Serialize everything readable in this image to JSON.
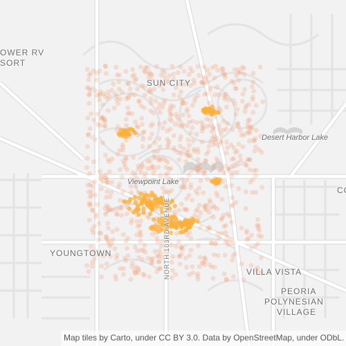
{
  "map": {
    "place_labels": [
      {
        "id": "sun-city",
        "text": "SUN CITY"
      },
      {
        "id": "desert-harbor-lake",
        "text": "Desert Harbor Lake"
      },
      {
        "id": "viewpoint-lake",
        "text": "Viewpoint Lake"
      },
      {
        "id": "youngtown",
        "text": "YOUNGTOWN"
      },
      {
        "id": "villa-vista",
        "text": "VILLA VISTA"
      },
      {
        "id": "peoria-polynesian-village",
        "line1": "PEORIA",
        "line2": "POLYNESIAN",
        "line3": "VILLAGE"
      },
      {
        "id": "power-rv-resort",
        "line1": "OWER RV",
        "line2": "SORT"
      },
      {
        "id": "co-partial",
        "text": "CO"
      }
    ],
    "street_labels": [
      {
        "id": "north-103rd-avenue",
        "text": "NORTH 103RD AVENUE"
      }
    ],
    "attribution": "Map tiles by Carto, under CC BY 3.0. Data by OpenStreetMap, under ODbL.",
    "colors": {
      "background": "#f2f2f2",
      "road": "#ffffff",
      "road_casing": "#dcdcdc",
      "water": "#d3d3d3",
      "dot_faint": "#f6a27a",
      "dot_strong": "#fbb03b"
    }
  }
}
